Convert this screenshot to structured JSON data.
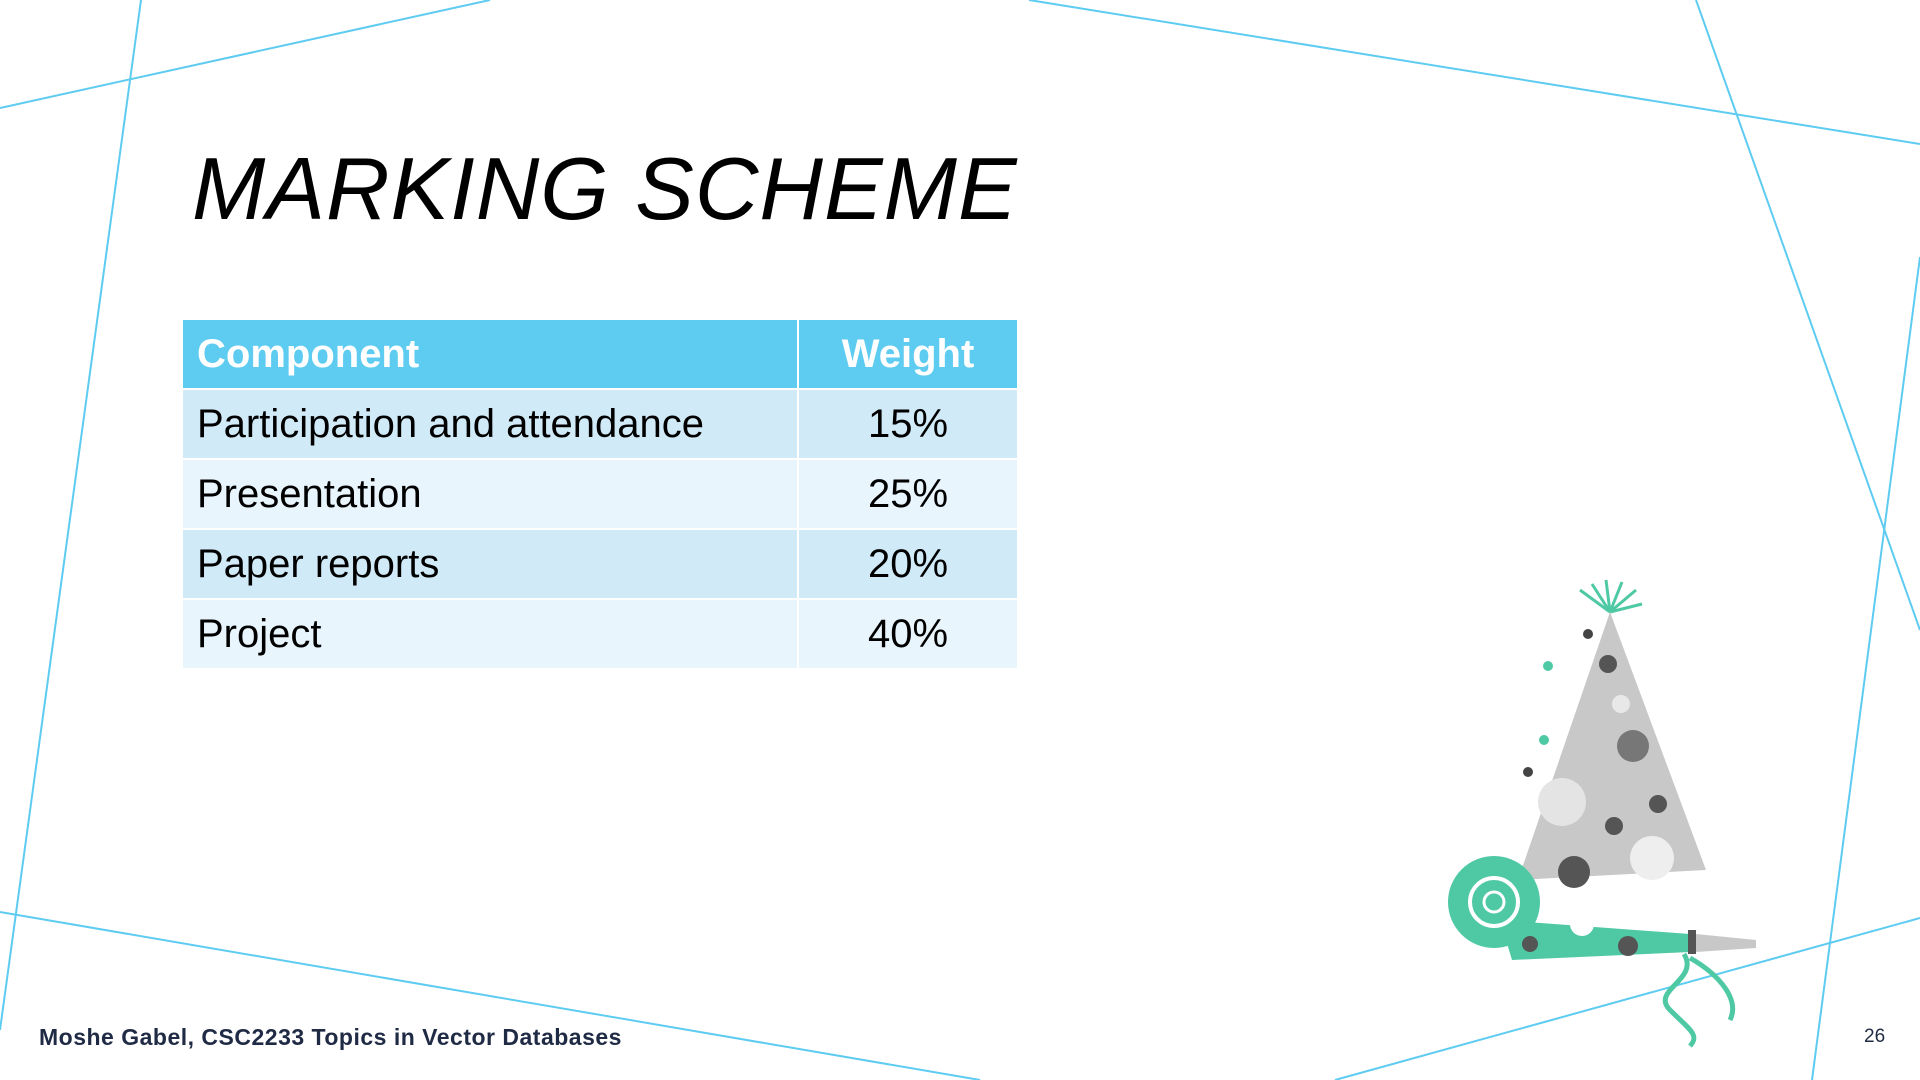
{
  "slide": {
    "title": "MARKING SCHEME",
    "table": {
      "header": [
        "Component",
        "Weight"
      ],
      "rows": [
        [
          "Participation and attendance",
          "15%"
        ],
        [
          "Presentation",
          "25%"
        ],
        [
          "Paper reports",
          "20%"
        ],
        [
          "Project",
          "40%"
        ]
      ]
    },
    "footer": "Moshe Gabel, CSC2233 Topics in Vector Databases",
    "page_number": "26"
  }
}
